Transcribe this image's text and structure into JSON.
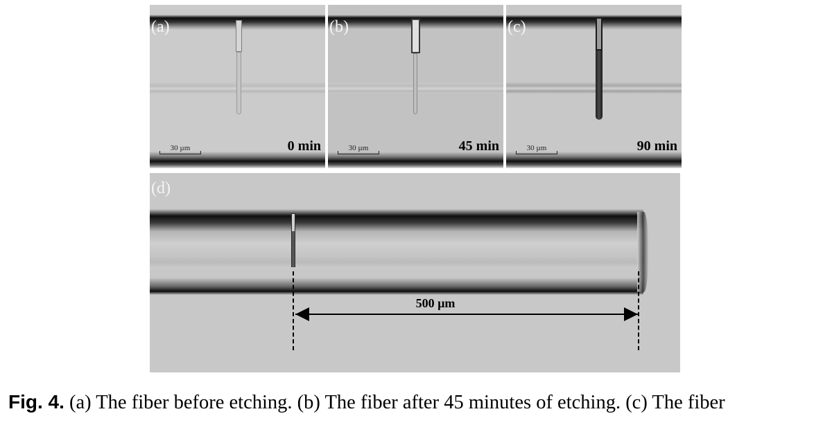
{
  "figure": {
    "panels": [
      {
        "tag": "(a)",
        "time": "0 min",
        "scale_bar": "30 µm"
      },
      {
        "tag": "(b)",
        "time": "45 min",
        "scale_bar": "30 µm"
      },
      {
        "tag": "(c)",
        "time": "90 min",
        "scale_bar": "30 µm"
      }
    ],
    "panel_d": {
      "tag": "(d)",
      "distance_label": "500 µm"
    }
  },
  "caption": {
    "label": "Fig. 4.",
    "text": "(a) The fiber before etching. (b) The fiber after 45 minutes of etching. (c) The fiber"
  }
}
